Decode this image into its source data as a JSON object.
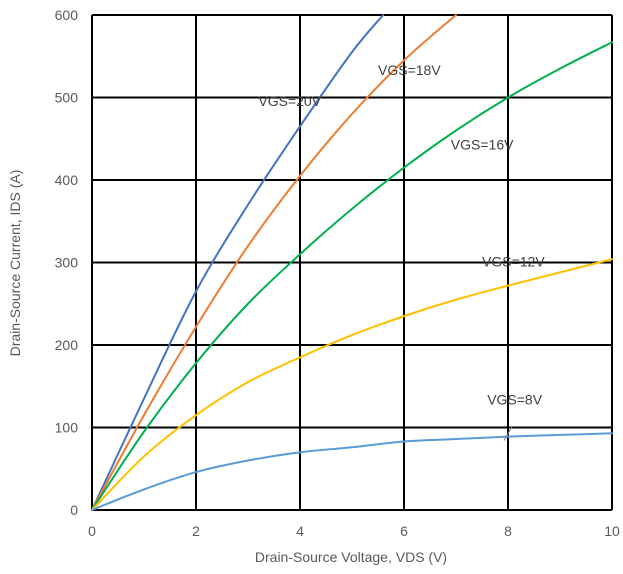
{
  "chart_data": {
    "type": "line",
    "title": "",
    "xlabel": "Drain-Source Voltage, VDS (V)",
    "ylabel": "Drain-Source Current, IDS (A)",
    "xlim": [
      0,
      10
    ],
    "ylim": [
      0,
      600
    ],
    "x_ticks": [
      0,
      2,
      4,
      6,
      8,
      10
    ],
    "y_ticks": [
      0,
      100,
      200,
      300,
      400,
      500,
      600
    ],
    "grid": true,
    "legend": "none",
    "series": [
      {
        "color": "#4472C4",
        "points": [
          [
            0,
            0
          ],
          [
            1,
            135
          ],
          [
            2,
            265
          ],
          [
            3,
            370
          ],
          [
            4,
            465
          ],
          [
            5,
            555
          ],
          [
            5.6,
            600
          ]
        ]
      },
      {
        "color": "#ED7D31",
        "points": [
          [
            0,
            0
          ],
          [
            1,
            115
          ],
          [
            2,
            222
          ],
          [
            3,
            320
          ],
          [
            4,
            405
          ],
          [
            5,
            480
          ],
          [
            6,
            545
          ],
          [
            7,
            600
          ]
        ]
      },
      {
        "color": "#00B050",
        "points": [
          [
            0,
            0
          ],
          [
            1,
            95
          ],
          [
            2,
            178
          ],
          [
            3,
            250
          ],
          [
            4,
            310
          ],
          [
            5,
            365
          ],
          [
            6,
            415
          ],
          [
            7,
            460
          ],
          [
            8,
            500
          ],
          [
            9,
            535
          ],
          [
            10,
            567
          ]
        ]
      },
      {
        "color": "#FFC000",
        "points": [
          [
            0,
            0
          ],
          [
            1,
            65
          ],
          [
            2,
            115
          ],
          [
            3,
            155
          ],
          [
            4,
            185
          ],
          [
            5,
            212
          ],
          [
            6,
            235
          ],
          [
            7,
            255
          ],
          [
            8,
            272
          ],
          [
            9,
            288
          ],
          [
            10,
            304
          ]
        ]
      },
      {
        "color": "#5B9BD5",
        "points": [
          [
            0,
            0
          ],
          [
            1,
            25
          ],
          [
            2,
            46
          ],
          [
            3,
            60
          ],
          [
            4,
            70
          ],
          [
            5,
            76
          ],
          [
            6,
            83
          ],
          [
            7,
            86
          ],
          [
            8,
            89
          ],
          [
            9,
            91
          ],
          [
            10,
            93
          ]
        ]
      }
    ],
    "annotations": [
      {
        "text": "VGS=20V",
        "x": 3.2,
        "y": 490,
        "series": 0
      },
      {
        "text": "VGS=18V",
        "x": 5.5,
        "y": 527,
        "series": 1
      },
      {
        "text": "VGS=16V",
        "x": 6.9,
        "y": 437,
        "series": 2
      },
      {
        "text": "VGS=12V",
        "x": 7.5,
        "y": 295,
        "series": 3
      },
      {
        "text": "VGS=8V",
        "x": 7.6,
        "y": 128,
        "series": 4
      }
    ]
  }
}
